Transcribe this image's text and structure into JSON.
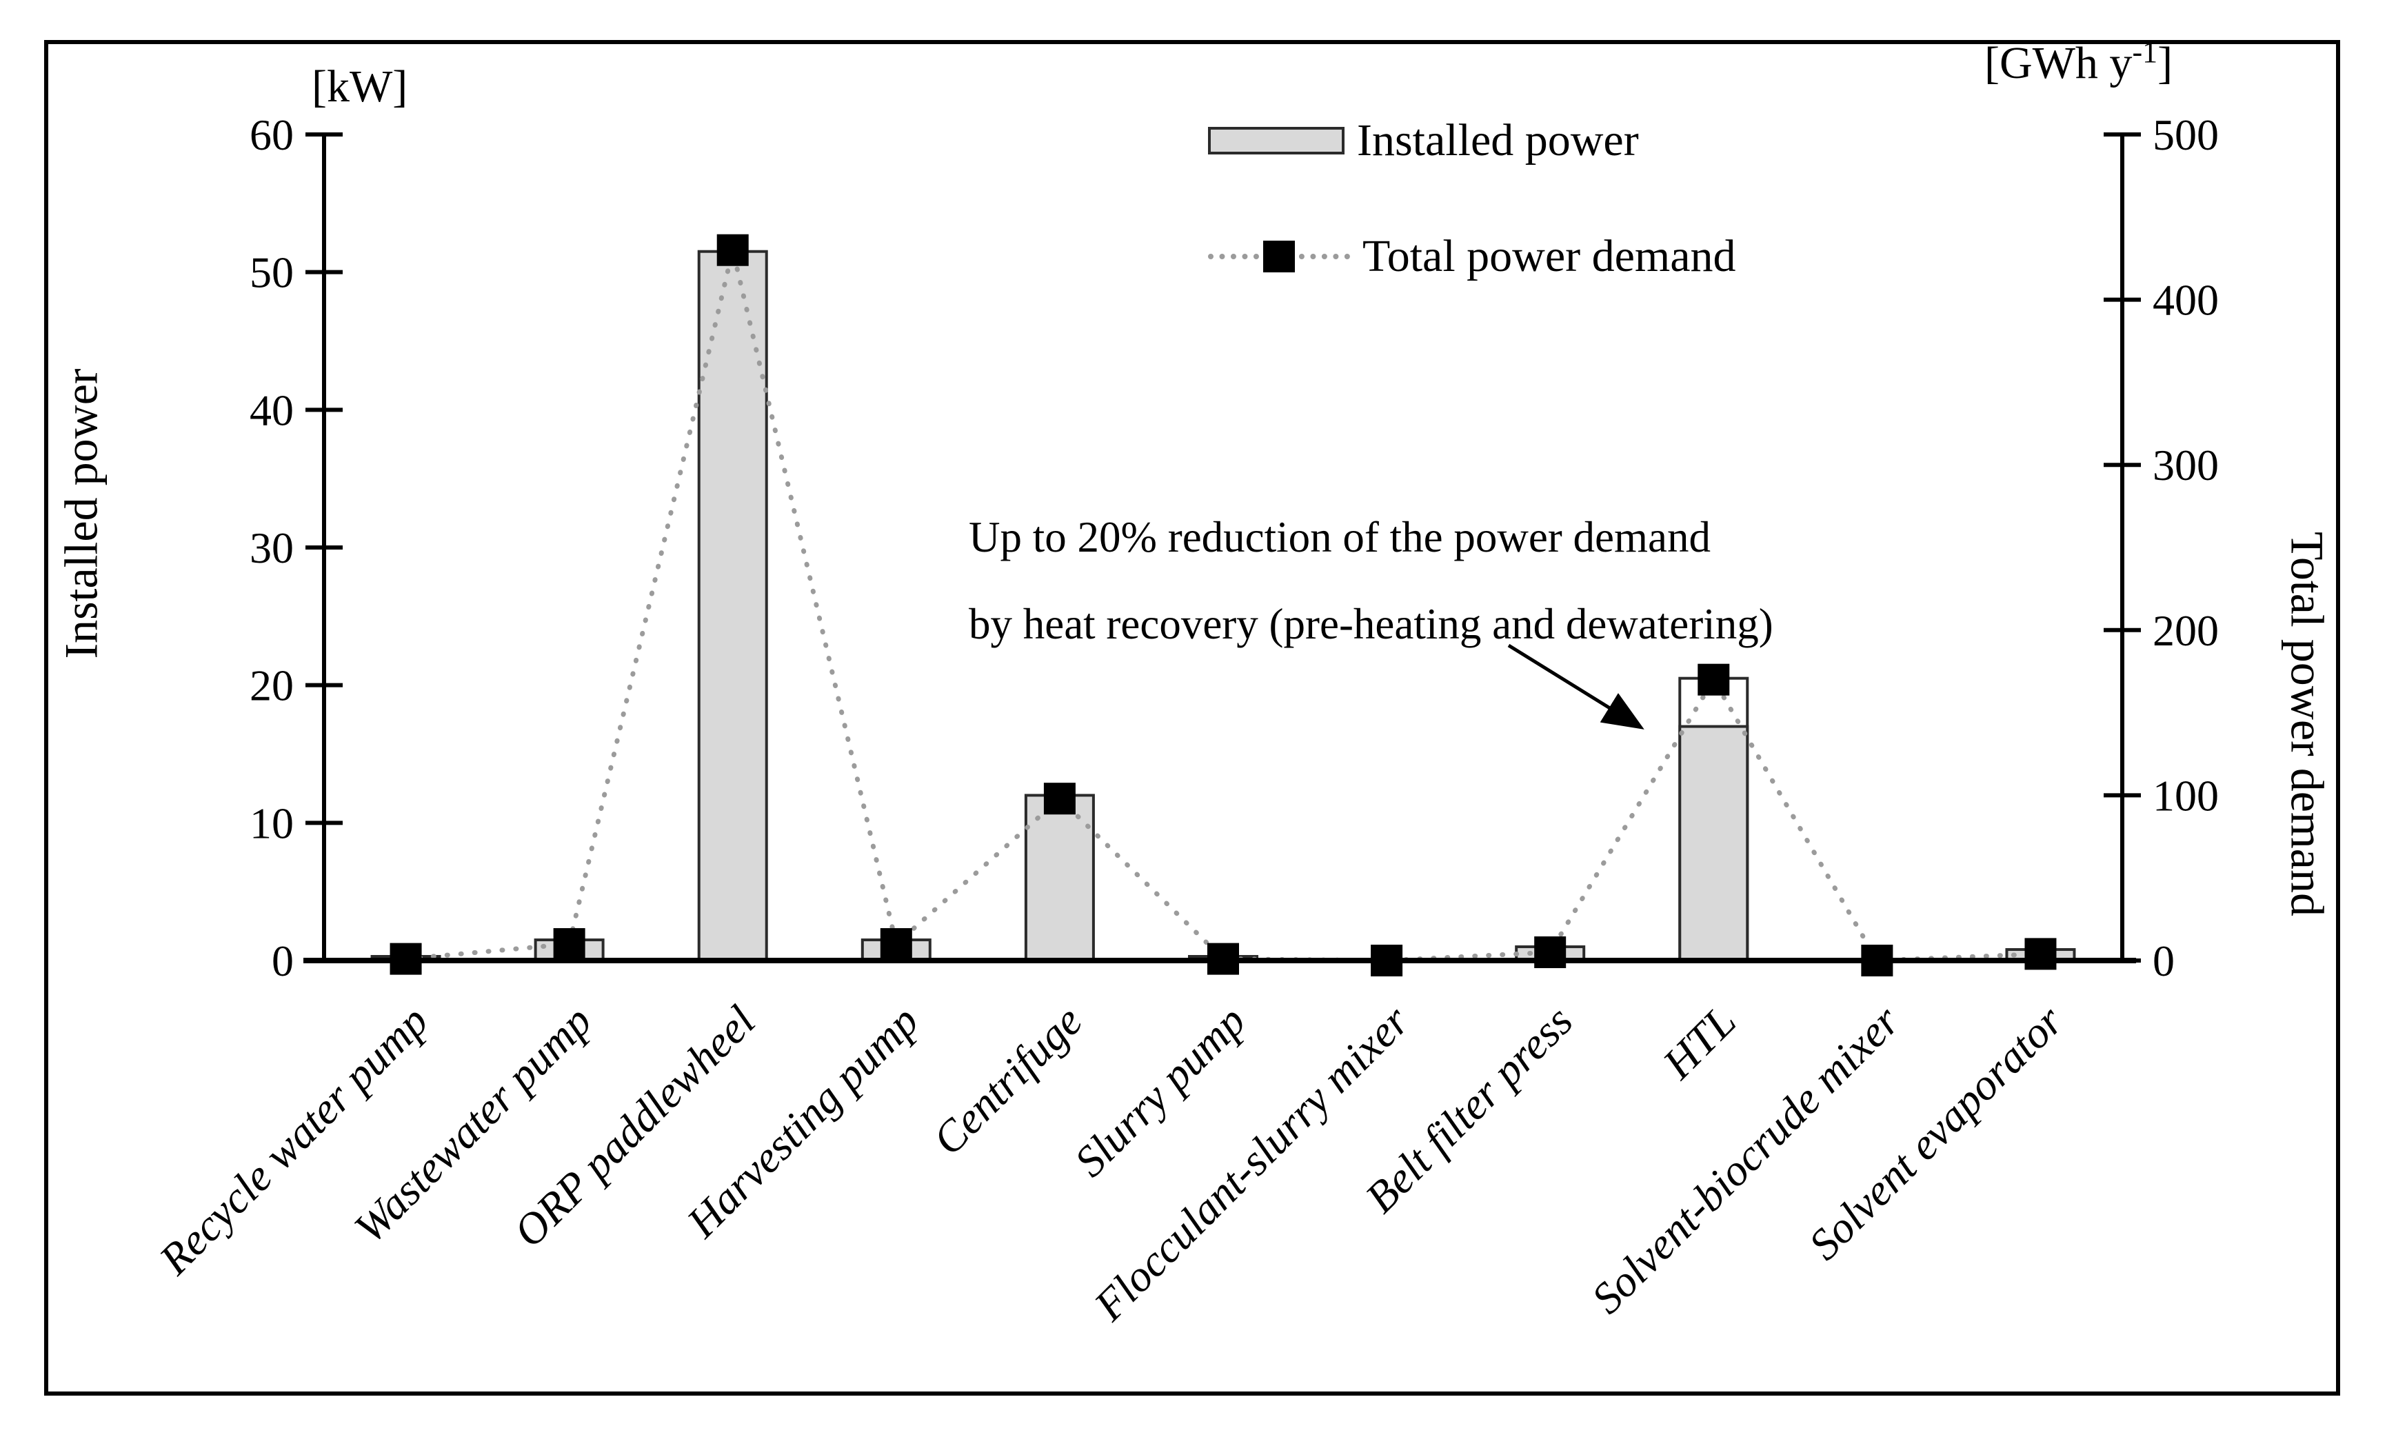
{
  "chart_data": {
    "type": "bar",
    "subtype": "dual-axis bar + dotted line with square markers",
    "categories": [
      "Recycle water pump",
      "Wastewater pump",
      "ORP paddlewheel",
      "Harvesting pump",
      "Centrifuge",
      "Slurry pump",
      "Flocculant-slurry mixer",
      "Belt filter press",
      "HTL",
      "Solvent-biocrude mixer",
      "Solvent evaporator"
    ],
    "series": [
      {
        "name": "Installed power",
        "type": "bar",
        "axis": "left",
        "unit": "kW",
        "values": [
          0.3,
          1.5,
          51.5,
          1.5,
          12,
          0.3,
          0.05,
          1.0,
          17,
          0.05,
          0.8
        ]
      },
      {
        "name": "Total power demand",
        "type": "line+marker",
        "axis": "right",
        "unit": "GWh y-1",
        "values": [
          1,
          10,
          430,
          10,
          98,
          1,
          0,
          5,
          170,
          0,
          4
        ]
      }
    ],
    "htl_outline": {
      "category": "HTL",
      "value_before_reduction_kW": 20.5,
      "meaning": "empty outlined bar segment above the grey HTL bar showing power before heat-recovery reduction"
    },
    "left_axis": {
      "label": "Installed power",
      "unit": "[kW]",
      "min": 0,
      "max": 60,
      "tick_step": 10,
      "ticks": [
        "60",
        "50",
        "40",
        "30",
        "20",
        "10",
        "0"
      ]
    },
    "right_axis": {
      "label": "Total power demand",
      "unit_prefix": "[GWh y",
      "unit_sup": "-1",
      "unit_suffix": "]",
      "min": 0,
      "max": 500,
      "tick_step": 100,
      "ticks": [
        "500",
        "400",
        "300",
        "200",
        "100",
        "0"
      ]
    },
    "legend": [
      "Installed power",
      "Total power demand"
    ],
    "legend_position": "top-center",
    "grid": "off",
    "annotation": {
      "line1": "Up to 20% reduction of the power demand",
      "line2": "by heat recovery (pre-heating and dewatering)",
      "arrow_points_to": "HTL bar"
    },
    "colors": {
      "bar_fill": "#d9d9d9",
      "bar_stroke": "#2b2b2b",
      "marker": "#000000",
      "dotted_line": "#9b9b9b",
      "axis": "#000000"
    }
  }
}
